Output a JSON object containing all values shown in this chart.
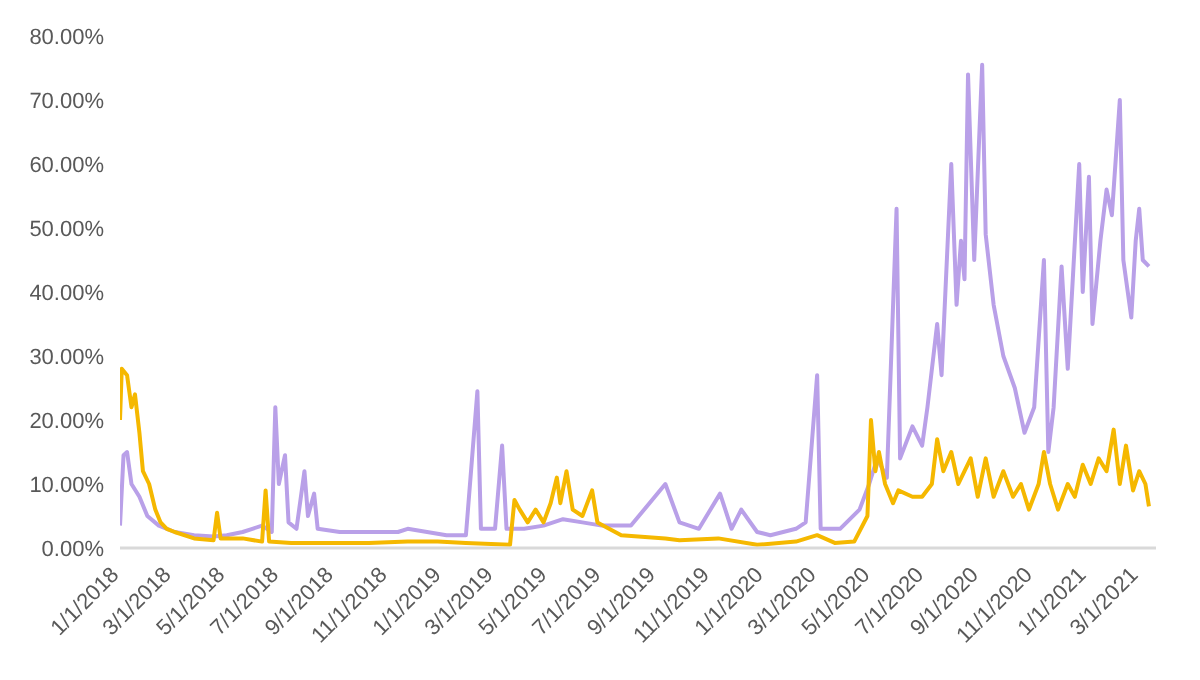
{
  "chart_data": {
    "type": "line",
    "xlim": [
      "2018-01-01",
      "2021-03-20"
    ],
    "xticks": [
      {
        "value": "2018-01-01",
        "label": "1/1/2018"
      },
      {
        "value": "2018-03-01",
        "label": "3/1/2018"
      },
      {
        "value": "2018-05-01",
        "label": "5/1/2018"
      },
      {
        "value": "2018-07-01",
        "label": "7/1/2018"
      },
      {
        "value": "2018-09-01",
        "label": "9/1/2018"
      },
      {
        "value": "2018-11-01",
        "label": "11/1/2018"
      },
      {
        "value": "2019-01-01",
        "label": "1/1/2019"
      },
      {
        "value": "2019-03-01",
        "label": "3/1/2019"
      },
      {
        "value": "2019-05-01",
        "label": "5/1/2019"
      },
      {
        "value": "2019-07-01",
        "label": "7/1/2019"
      },
      {
        "value": "2019-09-01",
        "label": "9/1/2019"
      },
      {
        "value": "2019-11-01",
        "label": "11/1/2019"
      },
      {
        "value": "2020-01-01",
        "label": "1/1/2020"
      },
      {
        "value": "2020-03-01",
        "label": "3/1/2020"
      },
      {
        "value": "2020-05-01",
        "label": "5/1/2020"
      },
      {
        "value": "2020-07-01",
        "label": "7/1/2020"
      },
      {
        "value": "2020-09-01",
        "label": "9/1/2020"
      },
      {
        "value": "2020-11-01",
        "label": "11/1/2020"
      },
      {
        "value": "2021-01-01",
        "label": "1/1/2021"
      },
      {
        "value": "2021-03-01",
        "label": "3/1/2021"
      }
    ],
    "ylim": [
      0,
      80
    ],
    "yticks": [
      {
        "value": 0,
        "label": "0.00%"
      },
      {
        "value": 10,
        "label": "10.00%"
      },
      {
        "value": 20,
        "label": "20.00%"
      },
      {
        "value": 30,
        "label": "30.00%"
      },
      {
        "value": 40,
        "label": "40.00%"
      },
      {
        "value": 50,
        "label": "50.00%"
      },
      {
        "value": 60,
        "label": "60.00%"
      },
      {
        "value": 70,
        "label": "70.00%"
      },
      {
        "value": 80,
        "label": "80.00%"
      }
    ],
    "grid": false,
    "legend": false,
    "marker": "none",
    "line_style": "solid",
    "series": [
      {
        "color": "#b9a0e8",
        "x": [
          "2018-01-01",
          "2018-01-05",
          "2018-01-09",
          "2018-01-14",
          "2018-01-23",
          "2018-02-01",
          "2018-02-14",
          "2018-03-04",
          "2018-03-26",
          "2018-04-17",
          "2018-05-02",
          "2018-05-20",
          "2018-05-31",
          "2018-06-11",
          "2018-06-22",
          "2018-06-26",
          "2018-06-30",
          "2018-07-07",
          "2018-07-11",
          "2018-07-20",
          "2018-07-29",
          "2018-08-02",
          "2018-08-09",
          "2018-08-13",
          "2018-09-07",
          "2018-10-10",
          "2018-11-12",
          "2018-11-23",
          "2018-12-15",
          "2019-01-06",
          "2019-01-28",
          "2019-02-10",
          "2019-02-14",
          "2019-03-02",
          "2019-03-10",
          "2019-03-15",
          "2019-04-04",
          "2019-04-26",
          "2019-05-18",
          "2019-06-09",
          "2019-07-01",
          "2019-08-03",
          "2019-09-11",
          "2019-09-27",
          "2019-10-19",
          "2019-11-12",
          "2019-11-25",
          "2019-12-06",
          "2019-12-24",
          "2020-01-08",
          "2020-02-06",
          "2020-02-17",
          "2020-03-01",
          "2020-03-05",
          "2020-03-27",
          "2020-04-18",
          "2020-04-29",
          "2020-05-08",
          "2020-05-19",
          "2020-05-30",
          "2020-06-03",
          "2020-06-17",
          "2020-06-28",
          "2020-07-04",
          "2020-07-15",
          "2020-07-20",
          "2020-07-31",
          "2020-08-06",
          "2020-08-11",
          "2020-08-15",
          "2020-08-19",
          "2020-08-26",
          "2020-09-04",
          "2020-09-08",
          "2020-09-17",
          "2020-09-28",
          "2020-10-11",
          "2020-10-22",
          "2020-11-02",
          "2020-11-13",
          "2020-11-18",
          "2020-11-24",
          "2020-12-03",
          "2020-12-10",
          "2020-12-23",
          "2020-12-27",
          "2021-01-03",
          "2021-01-07",
          "2021-01-16",
          "2021-01-23",
          "2021-01-29",
          "2021-02-07",
          "2021-02-11",
          "2021-02-20",
          "2021-02-25",
          "2021-03-01",
          "2021-03-05",
          "2021-03-12"
        ],
        "values": [
          3.5,
          14.5,
          15,
          10,
          8,
          5,
          3.5,
          2.5,
          2,
          1.8,
          2,
          2.5,
          3,
          3.5,
          2.5,
          22,
          10,
          14.5,
          4,
          3,
          12,
          5,
          8.5,
          3,
          2.5,
          2.5,
          2.5,
          3,
          2.5,
          2,
          2,
          24.5,
          3,
          3,
          16,
          3,
          3,
          3.5,
          4.5,
          4,
          3.5,
          3.5,
          10,
          4,
          3,
          8.5,
          3,
          6,
          2.5,
          2,
          3,
          4,
          27,
          3,
          3,
          6,
          10,
          14,
          11,
          53,
          14,
          19,
          16,
          22,
          35,
          27,
          60,
          38,
          48,
          42,
          74,
          45,
          75.5,
          49,
          38,
          30,
          25,
          18,
          22,
          45,
          15,
          22,
          44,
          28,
          60,
          40,
          58,
          35,
          48,
          56,
          52,
          70,
          45,
          36,
          48,
          53,
          45,
          44
        ]
      },
      {
        "color": "#f5b800",
        "x": [
          "2018-01-01",
          "2018-01-03",
          "2018-01-09",
          "2018-01-14",
          "2018-01-18",
          "2018-01-23",
          "2018-01-27",
          "2018-02-03",
          "2018-02-10",
          "2018-02-16",
          "2018-02-23",
          "2018-03-04",
          "2018-03-26",
          "2018-04-17",
          "2018-04-21",
          "2018-04-25",
          "2018-05-20",
          "2018-06-11",
          "2018-06-15",
          "2018-06-19",
          "2018-07-14",
          "2018-08-28",
          "2018-10-10",
          "2018-11-23",
          "2018-12-27",
          "2019-01-28",
          "2019-03-19",
          "2019-03-24",
          "2019-03-30",
          "2019-04-08",
          "2019-04-17",
          "2019-04-26",
          "2019-05-04",
          "2019-05-11",
          "2019-05-15",
          "2019-05-22",
          "2019-05-29",
          "2019-06-09",
          "2019-06-20",
          "2019-06-26",
          "2019-07-23",
          "2019-09-11",
          "2019-09-27",
          "2019-11-10",
          "2019-12-24",
          "2020-02-06",
          "2020-03-01",
          "2020-03-21",
          "2020-04-12",
          "2020-04-27",
          "2020-05-01",
          "2020-05-06",
          "2020-05-10",
          "2020-05-17",
          "2020-05-26",
          "2020-06-01",
          "2020-06-17",
          "2020-06-28",
          "2020-07-09",
          "2020-07-15",
          "2020-07-22",
          "2020-07-31",
          "2020-08-08",
          "2020-08-15",
          "2020-08-22",
          "2020-08-30",
          "2020-09-08",
          "2020-09-17",
          "2020-09-28",
          "2020-10-09",
          "2020-10-18",
          "2020-10-27",
          "2020-11-07",
          "2020-11-13",
          "2020-11-20",
          "2020-11-29",
          "2020-12-10",
          "2020-12-18",
          "2020-12-27",
          "2021-01-05",
          "2021-01-14",
          "2021-01-23",
          "2021-01-31",
          "2021-02-07",
          "2021-02-14",
          "2021-02-22",
          "2021-03-01",
          "2021-03-08",
          "2021-03-12"
        ],
        "values": [
          20,
          28,
          27,
          22,
          24,
          18,
          12,
          10,
          6,
          4,
          3,
          2.5,
          1.5,
          1.2,
          5.5,
          1.5,
          1.5,
          1,
          9,
          1,
          0.8,
          0.8,
          0.8,
          1,
          1,
          0.8,
          0.5,
          7.5,
          6,
          4,
          6,
          4,
          7,
          11,
          7,
          12,
          6,
          5,
          9,
          4,
          2,
          1.5,
          1.2,
          1.5,
          0.5,
          1,
          2,
          0.8,
          1,
          5,
          20,
          12,
          15,
          10,
          7,
          9,
          8,
          8,
          10,
          17,
          12,
          15,
          10,
          12,
          14,
          8,
          14,
          8,
          12,
          8,
          10,
          6,
          10,
          15,
          10,
          6,
          10,
          8,
          13,
          10,
          14,
          12,
          18.5,
          10,
          16,
          9,
          12,
          10,
          6.5
        ]
      }
    ]
  }
}
